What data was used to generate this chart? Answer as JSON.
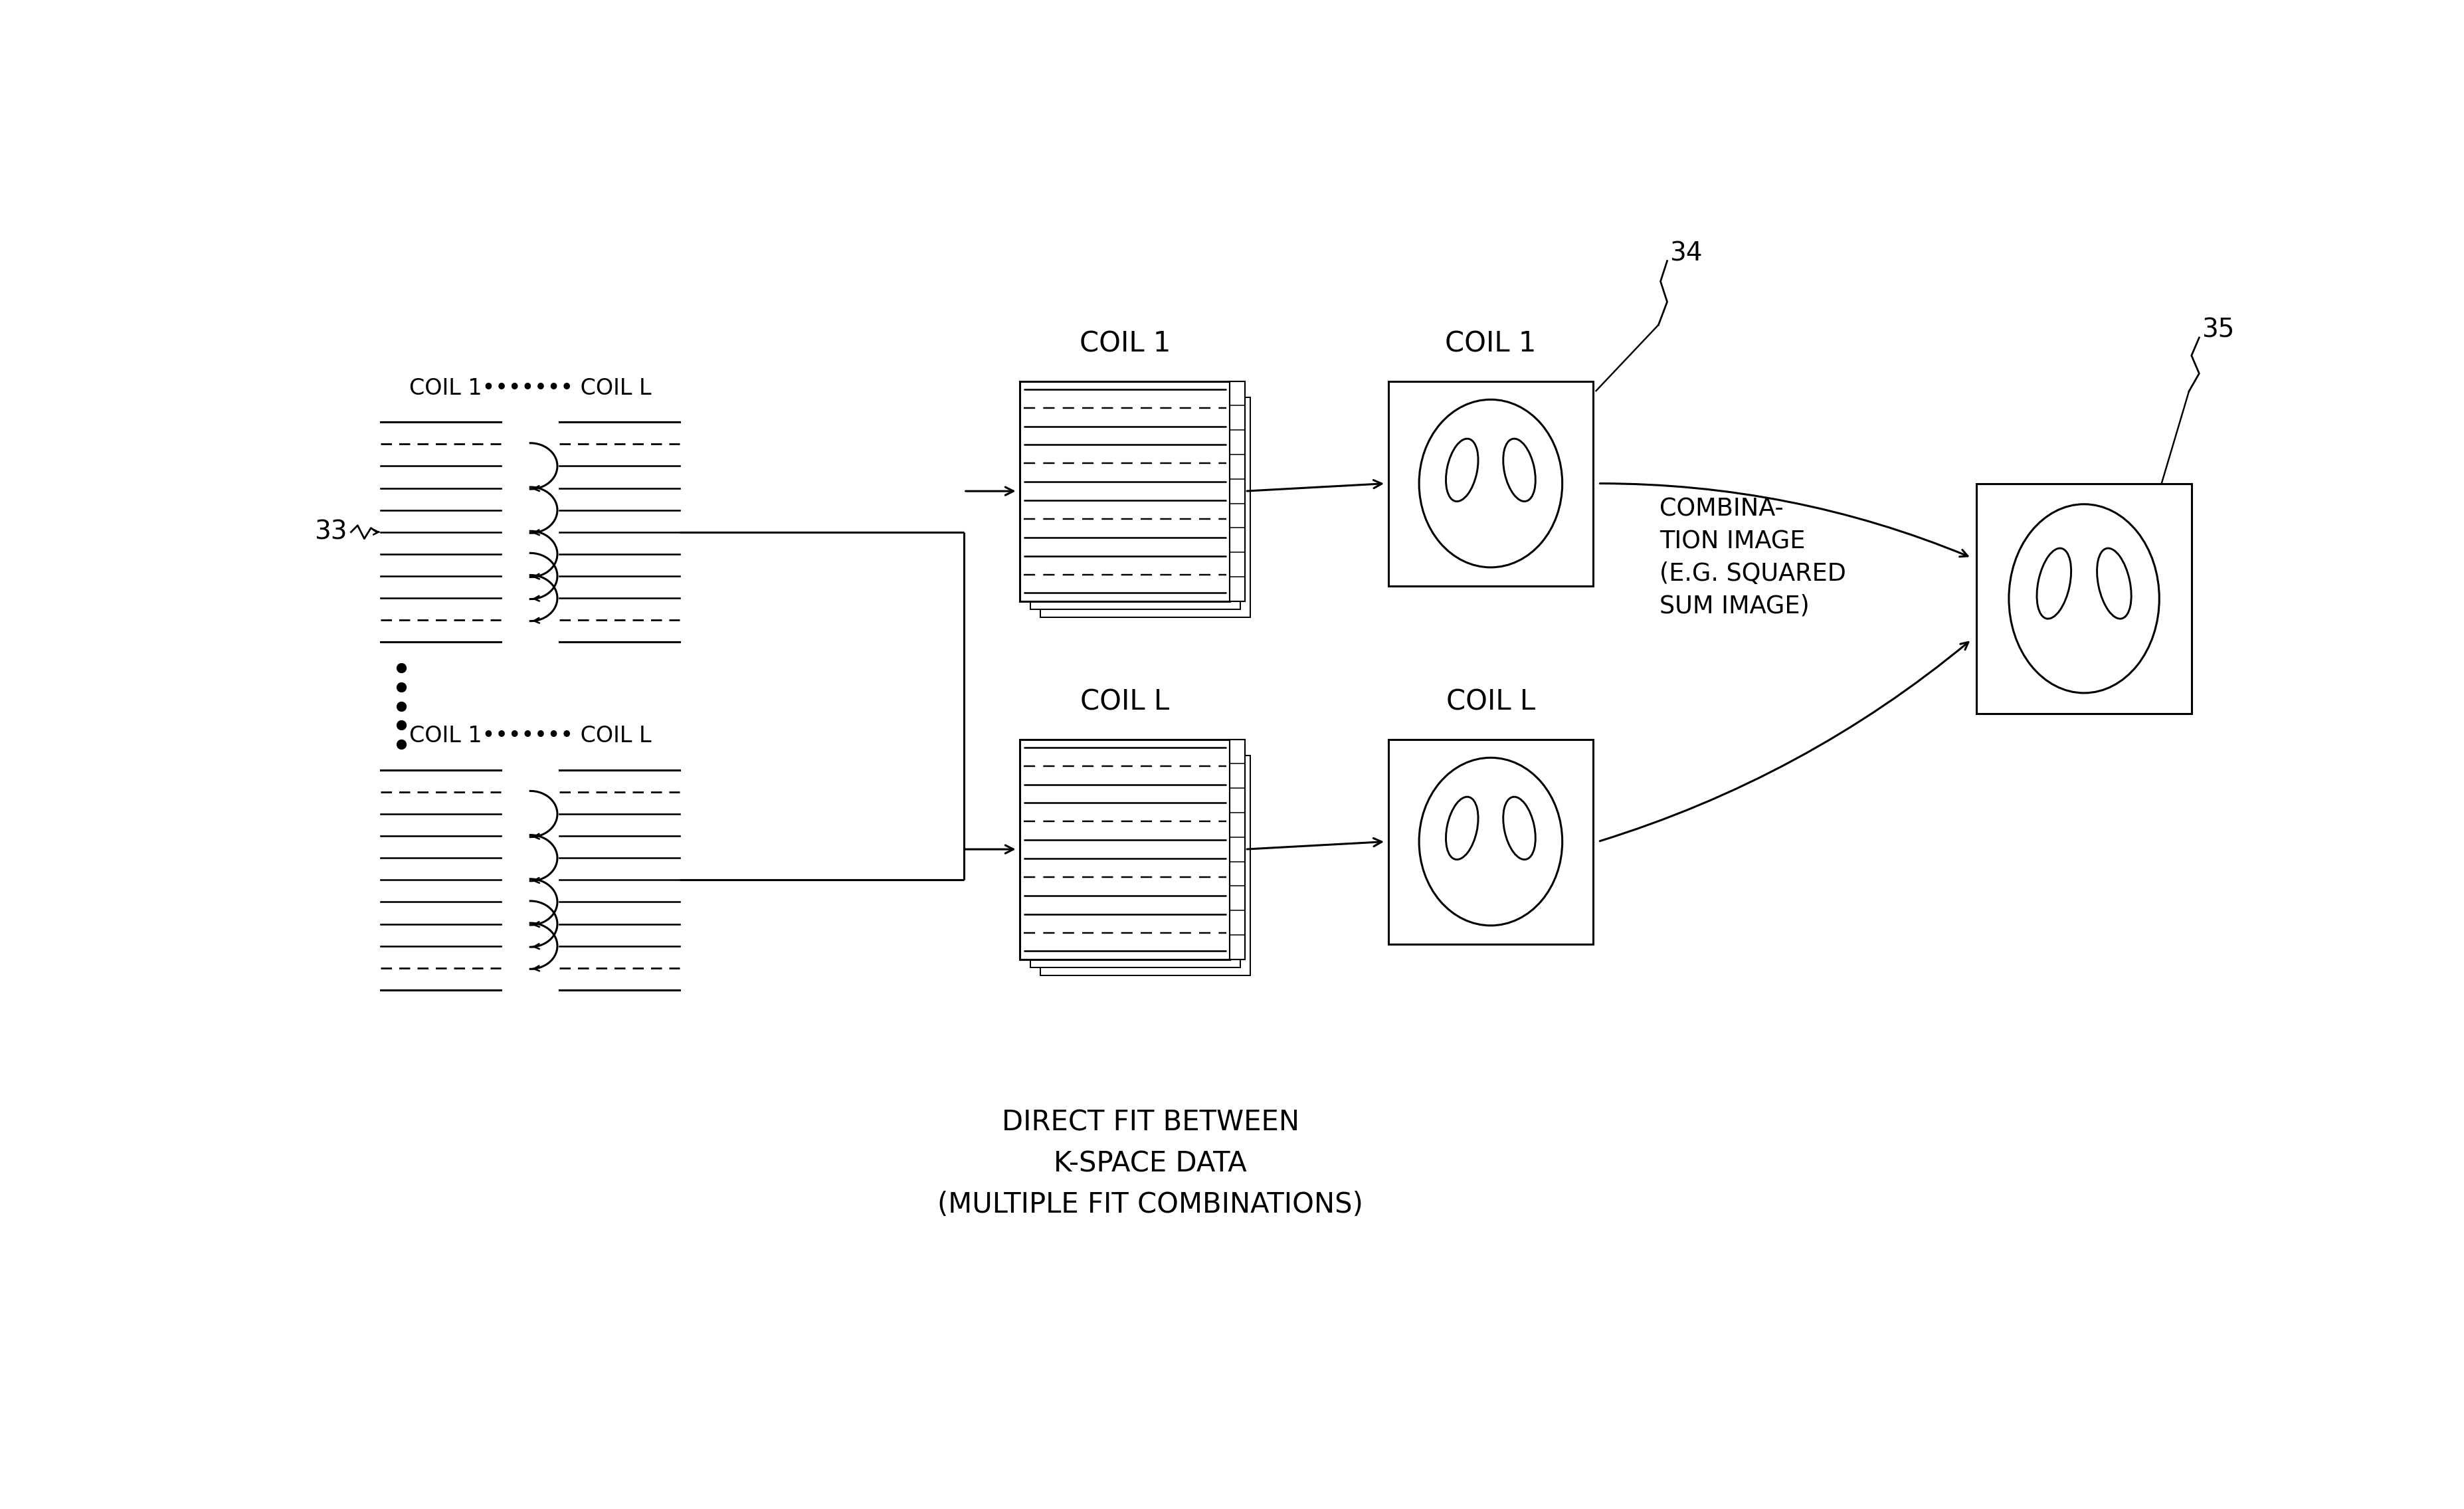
{
  "bg_color": "#ffffff",
  "label_33": "33",
  "label_34": "34",
  "label_35": "35",
  "label_coil1_top": "COIL 1••••••• COIL L",
  "label_coil1_bot": "COIL 1••••••• COIL L",
  "label_kspace_coil1": "COIL 1",
  "label_kspace_coilL": "COIL L",
  "label_img_coil1": "COIL 1",
  "label_img_coilL": "COIL L",
  "label_combination": "COMBINA-\nTION IMAGE\n(E.G. SQUARED\nSUM IMAGE)",
  "label_direct_fit": "DIRECT FIT BETWEEN\nK-SPACE DATA\n(MULTIPLE FIT COMBINATIONS)",
  "font_size_main": 30,
  "font_size_ref": 28
}
